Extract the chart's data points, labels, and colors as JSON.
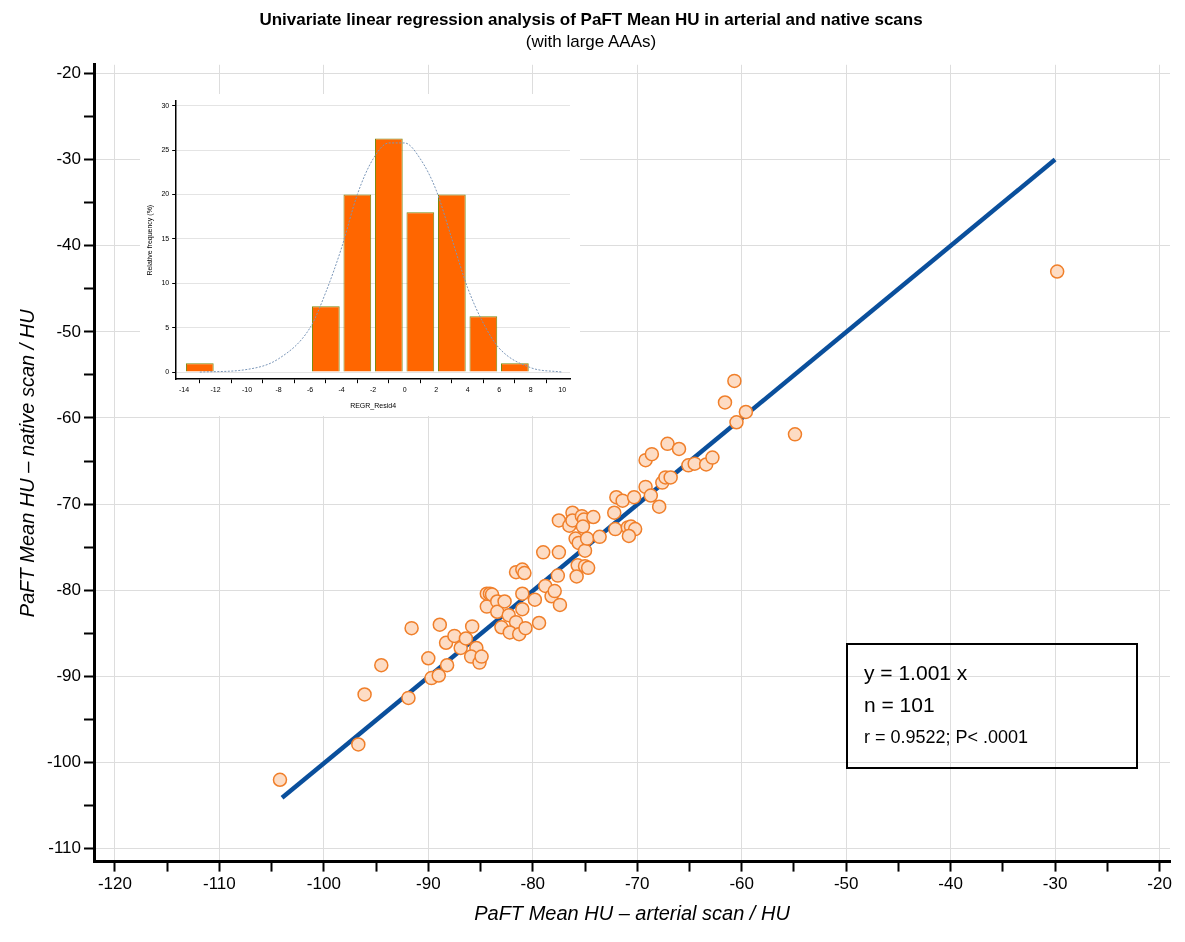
{
  "chart_data": [
    {
      "type": "scatter",
      "title": "Univariate linear regression analysis of PaFT Mean HU in arterial and native scans",
      "subtitle": "(with large AAAs)",
      "xlabel": "PaFT Mean HU – arterial scan / HU",
      "ylabel": "PaFT Mean HU – native scan / HU",
      "xlim": [
        -122,
        -19
      ],
      "ylim": [
        -111.5,
        -19
      ],
      "xticks": [
        -120,
        {
          "value": -115,
          "label": null
        },
        -110,
        {
          "value": -105,
          "label": null
        },
        -100,
        {
          "value": -95,
          "label": null
        },
        -90,
        {
          "value": -85,
          "label": null
        },
        -80,
        {
          "value": -75,
          "label": null
        },
        -70,
        {
          "value": -65,
          "label": null
        },
        -60,
        {
          "value": -55,
          "label": null
        },
        -50,
        {
          "value": -45,
          "label": null
        },
        -40,
        {
          "value": -35,
          "label": null
        },
        -30,
        {
          "value": -25,
          "label": null
        },
        -20
      ],
      "yticks": [
        -110,
        {
          "value": -105,
          "label": null
        },
        -100,
        {
          "value": -95,
          "label": null
        },
        -90,
        {
          "value": -85,
          "label": null
        },
        -80,
        {
          "value": -75,
          "label": null
        },
        -70,
        {
          "value": -65,
          "label": null
        },
        -60,
        {
          "value": -55,
          "label": null
        },
        -50,
        {
          "value": -45,
          "label": null
        },
        -40,
        {
          "value": -35,
          "label": null
        },
        -30,
        {
          "value": -25,
          "label": null
        },
        -20
      ],
      "grid": true,
      "marker": "circle",
      "annotations": [
        "y = 1.001 x",
        "n = 101",
        "r = 0.9522; P< .0001"
      ],
      "series": [
        {
          "type": "scatter",
          "color": "#f07f2a",
          "x": [
            -104.2,
            -96.7,
            -96.1,
            -94.5,
            -91.6,
            -91.9,
            -90.0,
            -89.7,
            -89.0,
            -88.9,
            -88.3,
            -87.5,
            -86.9,
            -86.4,
            -85.8,
            -85.4,
            -85.9,
            -85.1,
            -84.9,
            -88.2,
            -84.4,
            -84.4,
            -84.1,
            -83.9,
            -83.4,
            -83.4,
            -82.7,
            -83.0,
            -82.3,
            -81.6,
            -82.2,
            -81.3,
            -80.7,
            -81.0,
            -81.6,
            -81.0,
            -80.8,
            -81.0,
            -79.8,
            -79.4,
            -79.0,
            -78.8,
            -78.2,
            -77.9,
            -77.4,
            -77.6,
            -77.5,
            -77.5,
            -76.5,
            -76.2,
            -76.2,
            -75.3,
            -75.1,
            -75.2,
            -74.2,
            -75.9,
            -75.6,
            -75.0,
            -74.8,
            -73.6,
            -75.7,
            -75.0,
            -74.7,
            -75.8,
            -72.1,
            -72.2,
            -72.0,
            -71.4,
            -70.9,
            -70.6,
            -70.2,
            -70.8,
            -70.3,
            -69.2,
            -68.7,
            -67.9,
            -69.2,
            -68.6,
            -67.6,
            -67.3,
            -66.8,
            -67.1,
            -66.0,
            -65.1,
            -64.5,
            -63.4,
            -62.8,
            -61.6,
            -60.5,
            -59.6,
            -54.9,
            -29.8,
            -60.7
          ],
          "values": [
            -102.0,
            -97.9,
            -92.1,
            -88.7,
            -84.4,
            -92.5,
            -87.9,
            -90.2,
            -89.9,
            -84.0,
            -86.1,
            -85.3,
            -86.7,
            -85.6,
            -84.2,
            -86.7,
            -87.7,
            -88.4,
            -87.7,
            -88.7,
            -81.9,
            -80.4,
            -80.4,
            -80.5,
            -81.3,
            -82.5,
            -81.3,
            -84.3,
            -82.9,
            -83.7,
            -84.9,
            -85.1,
            -84.4,
            -82.2,
            -77.9,
            -77.6,
            -78.0,
            -80.4,
            -81.1,
            -83.8,
            -75.6,
            -79.5,
            -80.7,
            -80.1,
            -81.7,
            -78.3,
            -75.6,
            -71.9,
            -72.5,
            -71.0,
            -71.9,
            -71.4,
            -71.8,
            -72.6,
            -71.5,
            -74.0,
            -74.5,
            -75.4,
            -74.0,
            -73.8,
            -77.1,
            -77.2,
            -77.4,
            -78.4,
            -72.9,
            -71.0,
            -69.2,
            -69.6,
            -72.7,
            -72.6,
            -72.9,
            -73.7,
            -69.2,
            -68.0,
            -69.0,
            -70.3,
            -64.9,
            -64.2,
            -67.5,
            -66.9,
            -66.9,
            -63.0,
            -63.6,
            -65.5,
            -65.3,
            -65.4,
            -64.6,
            -58.2,
            -60.5,
            -59.3,
            -61.9,
            -43.0,
            -55.7
          ]
        },
        {
          "type": "line",
          "color": "#0a4f9c",
          "marker": "none",
          "x": [
            -104,
            -30
          ],
          "values": [
            -104.1,
            -30.0
          ]
        }
      ]
    },
    {
      "type": "histogram",
      "xlabel": "REGR_Resid4",
      "ylabel": "Relative frequency (%)",
      "color": "#ff6600",
      "bins": [
        -14,
        -12,
        -10,
        -8,
        -6,
        -4,
        -2,
        0,
        2,
        4,
        6,
        8
      ],
      "values": [
        1,
        0,
        0,
        0,
        7.4,
        20,
        26.3,
        18,
        20,
        6.3,
        1
      ],
      "xlim": [
        -14.5,
        10.5
      ],
      "ylim": [
        -0.8,
        30.5
      ],
      "xticks": [
        -14,
        -12,
        -10,
        -8,
        -6,
        -4,
        -2,
        0,
        2,
        4,
        6,
        8,
        10
      ],
      "yticks": [
        0,
        5,
        10,
        15,
        20,
        25,
        30
      ],
      "grid": "y",
      "series": [
        {
          "type": "line",
          "color": "#7a96b8",
          "line_style": "dotted",
          "marker": "none",
          "x": [
            -13,
            -10,
            -8,
            -6,
            -5,
            -4,
            -3,
            -2,
            -1,
            0,
            1,
            2,
            3,
            4,
            5,
            6,
            8,
            10
          ],
          "values": [
            0,
            0.3,
            1.5,
            5,
            9,
            14,
            20,
            24,
            25.8,
            25.8,
            24,
            20.5,
            15,
            9.5,
            5.5,
            2.7,
            0.5,
            0
          ]
        }
      ]
    }
  ]
}
